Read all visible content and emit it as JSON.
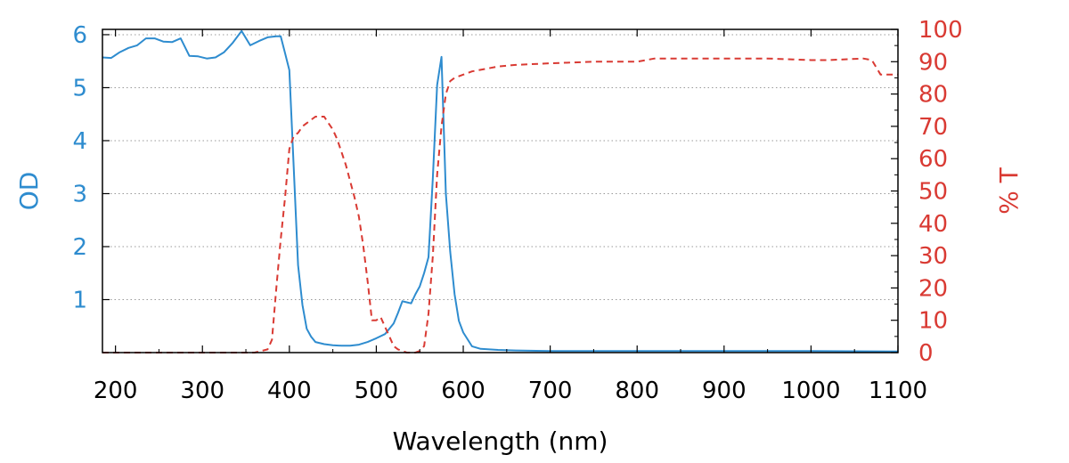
{
  "chart_data": {
    "type": "line",
    "title": "",
    "xlabel": "Wavelength (nm)",
    "ylabel_left": "OD",
    "ylabel_right": "% T",
    "xlim": [
      185,
      1100
    ],
    "ylim_left": [
      0,
      6.1
    ],
    "ylim_right": [
      0,
      100
    ],
    "x_ticks": [
      200,
      300,
      400,
      500,
      600,
      700,
      800,
      900,
      1000,
      1100
    ],
    "y_left_ticks": [
      1,
      2,
      3,
      4,
      5,
      6
    ],
    "y_right_ticks": [
      0,
      10,
      20,
      30,
      40,
      50,
      60,
      70,
      80,
      90,
      100
    ],
    "grid": "horizontal dotted",
    "colors": {
      "od": "#2e8ccf",
      "transmission": "#d93a33",
      "axis": "#000000",
      "grid": "#999999"
    },
    "series": [
      {
        "axis": "left",
        "style": "solid",
        "x": [
          185,
          195,
          205,
          215,
          225,
          235,
          245,
          255,
          265,
          275,
          285,
          295,
          305,
          315,
          325,
          335,
          345,
          355,
          365,
          375,
          385,
          390,
          395,
          400,
          405,
          410,
          415,
          420,
          425,
          430,
          440,
          450,
          460,
          470,
          480,
          490,
          500,
          510,
          520,
          525,
          530,
          535,
          540,
          545,
          550,
          555,
          560,
          565,
          570,
          575,
          580,
          585,
          590,
          595,
          600,
          605,
          610,
          620,
          640,
          660,
          700,
          800,
          900,
          1000,
          1100
        ],
        "y": [
          5.57,
          5.56,
          5.67,
          5.75,
          5.8,
          5.93,
          5.93,
          5.87,
          5.86,
          5.93,
          5.6,
          5.59,
          5.55,
          5.57,
          5.67,
          5.85,
          6.07,
          5.8,
          5.88,
          5.95,
          5.97,
          5.97,
          5.65,
          5.33,
          3.5,
          1.65,
          0.9,
          0.45,
          0.3,
          0.2,
          0.16,
          0.14,
          0.13,
          0.13,
          0.15,
          0.2,
          0.27,
          0.35,
          0.55,
          0.75,
          0.97,
          0.95,
          0.93,
          1.1,
          1.25,
          1.5,
          1.8,
          3.3,
          5.05,
          5.58,
          3.0,
          1.9,
          1.1,
          0.6,
          0.38,
          0.25,
          0.12,
          0.07,
          0.05,
          0.04,
          0.03,
          0.03,
          0.03,
          0.03,
          0.02
        ]
      },
      {
        "axis": "right",
        "style": "dashed",
        "x": [
          185,
          250,
          300,
          360,
          375,
          380,
          385,
          390,
          395,
          400,
          405,
          410,
          415,
          420,
          425,
          430,
          435,
          440,
          445,
          450,
          455,
          460,
          465,
          470,
          475,
          480,
          485,
          490,
          495,
          500,
          505,
          510,
          515,
          520,
          525,
          530,
          535,
          540,
          545,
          550,
          555,
          560,
          565,
          570,
          575,
          580,
          585,
          590,
          600,
          610,
          620,
          640,
          660,
          700,
          750,
          800,
          820,
          860,
          900,
          950,
          1000,
          1020,
          1060,
          1070,
          1080,
          1100
        ],
        "y": [
          0,
          0,
          0,
          0,
          1,
          4,
          20,
          35,
          48,
          63,
          67,
          68,
          70,
          71,
          72,
          73,
          73,
          73,
          71,
          69,
          66,
          62,
          58,
          53,
          48,
          42,
          33,
          22,
          10,
          10,
          11,
          8,
          5,
          2,
          1,
          0.5,
          0,
          0,
          0,
          0.5,
          2,
          12,
          30,
          55,
          70,
          80,
          84,
          85,
          86,
          87,
          87.5,
          88.5,
          89,
          89.5,
          90,
          90,
          91,
          91,
          91,
          91,
          90.5,
          90.5,
          91,
          90.5,
          86,
          86
        ]
      }
    ]
  }
}
